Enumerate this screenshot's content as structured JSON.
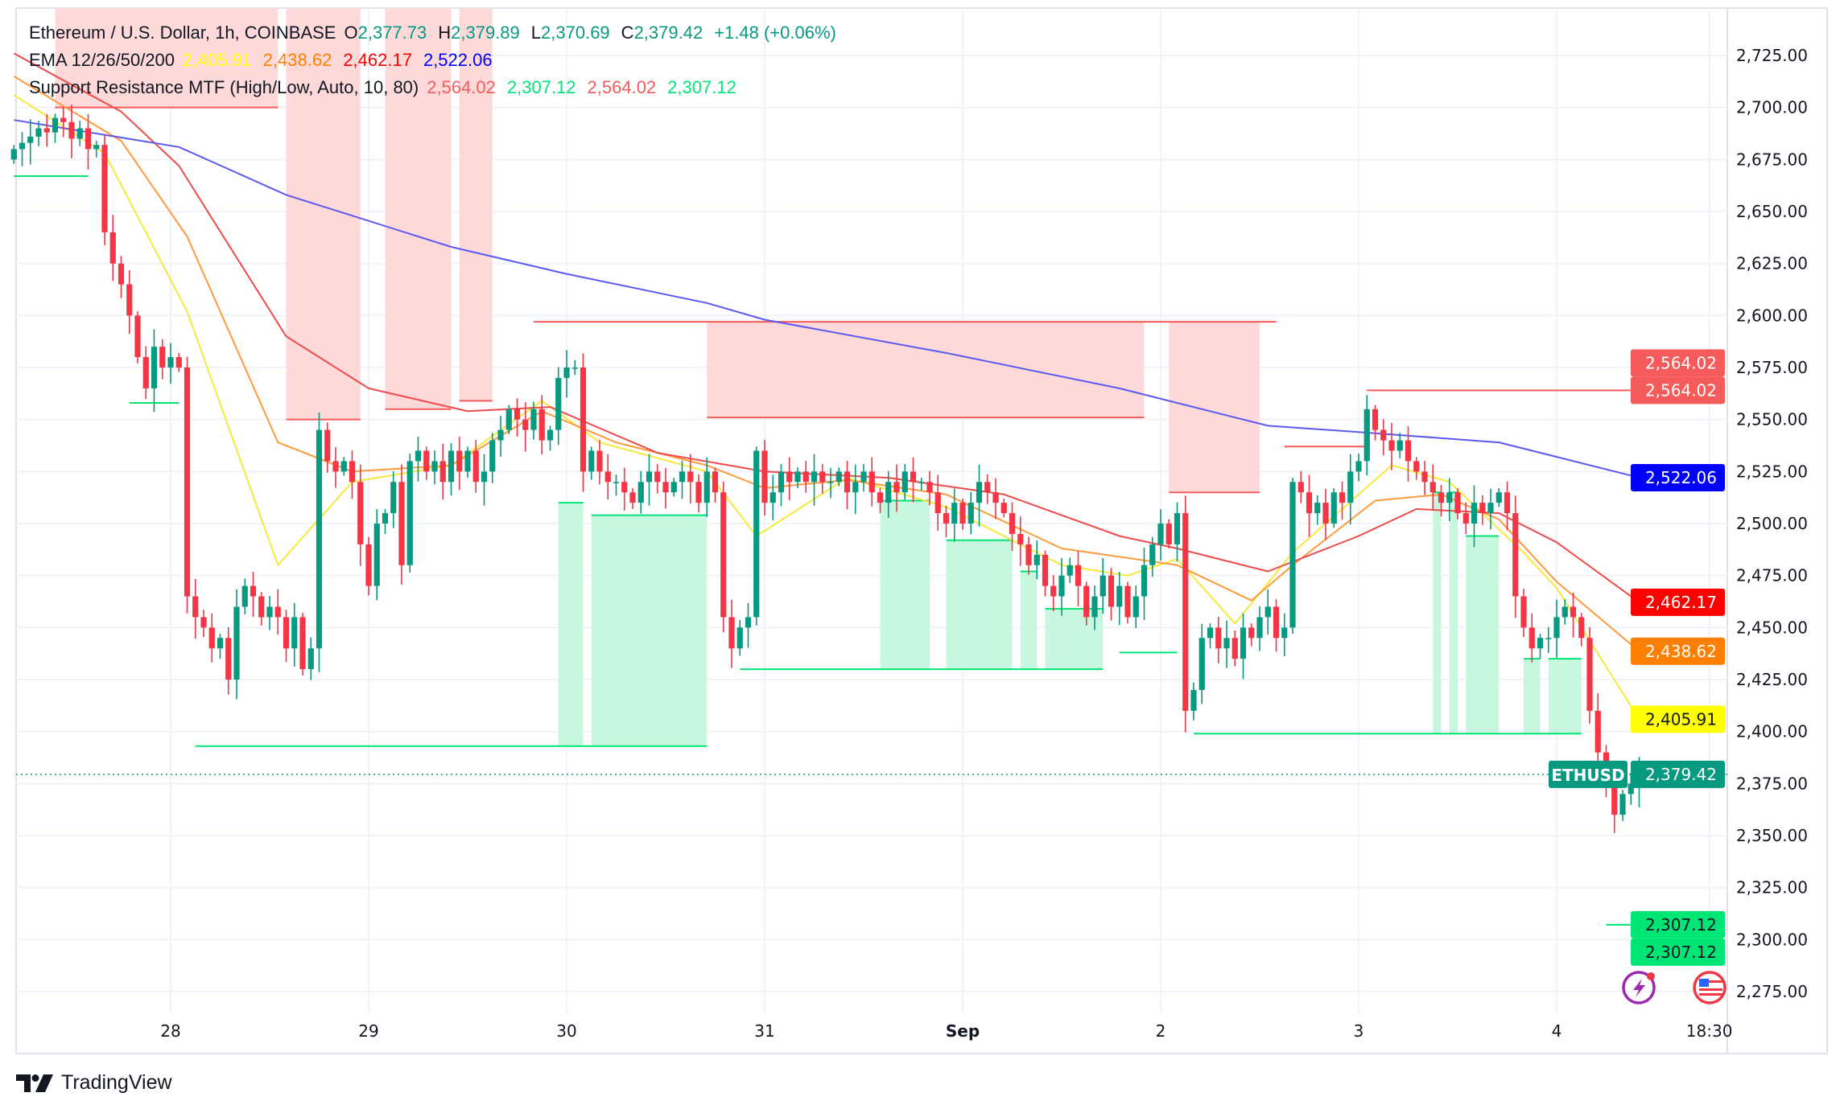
{
  "header": {
    "symbol_line": "Ethereum / U.S. Dollar, 1h, COINBASE",
    "ohlc": {
      "o_label": "O",
      "o": "2,377.73",
      "h_label": "H",
      "h": "2,379.89",
      "l_label": "L",
      "l": "2,370.69",
      "c_label": "C",
      "c": "2,379.42",
      "change": "+1.48 (+0.06%)"
    },
    "ema": {
      "label": "EMA 12/26/50/200",
      "v12": "2,405.91",
      "v26": "2,438.62",
      "v50": "2,462.17",
      "v200": "2,522.06"
    },
    "sr": {
      "label": "Support Resistance MTF (High/Low, Auto, 10, 80)",
      "r1": "2,564.02",
      "s1": "2,307.12",
      "r2": "2,564.02",
      "s2": "2,307.12"
    }
  },
  "colors": {
    "up": "#089981",
    "down": "#f23645",
    "ema12": "#f7e93a",
    "ema26": "#ff9a3c",
    "ema50": "#f04a4a",
    "ema200": "#5a5af0",
    "resistance": "#f55b5b",
    "support": "#00e676",
    "resistance_zone": "#fdd9da",
    "support_zone": "#c8f7e0"
  },
  "footer": {
    "brand": "TradingView"
  },
  "chart_data": {
    "type": "candlestick",
    "symbol": "ETHUSD",
    "interval": "1h",
    "ylim": [
      2262,
      2747
    ],
    "y_ticks": [
      "2,275.00",
      "2,300.00",
      "2,325.00",
      "2,350.00",
      "2,375.00",
      "2,400.00",
      "2,425.00",
      "2,450.00",
      "2,475.00",
      "2,500.00",
      "2,525.00",
      "2,550.00",
      "2,575.00",
      "2,600.00",
      "2,625.00",
      "2,650.00",
      "2,675.00",
      "2,700.00",
      "2,725.00"
    ],
    "x_ticks": [
      {
        "label": "28",
        "t": "08-28 00:00"
      },
      {
        "label": "29",
        "t": "08-29 00:00"
      },
      {
        "label": "30",
        "t": "08-30 00:00"
      },
      {
        "label": "31",
        "t": "08-31 00:00"
      },
      {
        "label": "Sep",
        "t": "09-01 00:00"
      },
      {
        "label": "2",
        "t": "09-02 00:00"
      },
      {
        "label": "3",
        "t": "09-03 00:00"
      },
      {
        "label": "4",
        "t": "09-04 00:00"
      },
      {
        "label": "18:30",
        "t": "09-04 18:30"
      }
    ],
    "grid": true,
    "candles": {
      "start": "08-27 05:00",
      "first_open": 2675,
      "closes": [
        2680,
        2683,
        2686,
        2690,
        2688,
        2695,
        2693,
        2685,
        2690,
        2680,
        2682,
        2640,
        2625,
        2615,
        2600,
        2580,
        2565,
        2585,
        2575,
        2580,
        2575,
        2465,
        2455,
        2450,
        2440,
        2445,
        2425,
        2460,
        2470,
        2465,
        2455,
        2460,
        2455,
        2440,
        2455,
        2430,
        2440,
        2545,
        2530,
        2525,
        2530,
        2520,
        2490,
        2470,
        2500,
        2505,
        2520,
        2480,
        2530,
        2535,
        2525,
        2530,
        2520,
        2535,
        2525,
        2535,
        2520,
        2525,
        2540,
        2545,
        2555,
        2550,
        2545,
        2555,
        2540,
        2545,
        2570,
        2575,
        2575,
        2525,
        2535,
        2525,
        2520,
        2520,
        2515,
        2510,
        2520,
        2525,
        2520,
        2515,
        2520,
        2525,
        2520,
        2510,
        2525,
        2515,
        2455,
        2440,
        2450,
        2455,
        2535,
        2510,
        2515,
        2525,
        2520,
        2525,
        2520,
        2525,
        2520,
        2520,
        2525,
        2515,
        2520,
        2525,
        2515,
        2510,
        2520,
        2515,
        2525,
        2520,
        2520,
        2515,
        2505,
        2500,
        2510,
        2500,
        2510,
        2520,
        2515,
        2510,
        2505,
        2495,
        2490,
        2480,
        2485,
        2470,
        2465,
        2475,
        2480,
        2470,
        2455,
        2465,
        2475,
        2460,
        2470,
        2455,
        2465,
        2480,
        2490,
        2500,
        2490,
        2505,
        2410,
        2420,
        2445,
        2450,
        2440,
        2445,
        2435,
        2450,
        2445,
        2455,
        2460,
        2445,
        2450,
        2520,
        2515,
        2505,
        2510,
        2500,
        2515,
        2510,
        2525,
        2530,
        2555,
        2545,
        2540,
        2535,
        2540,
        2530,
        2525,
        2520,
        2515,
        2510,
        2515,
        2505,
        2500,
        2510,
        2505,
        2510,
        2515,
        2505,
        2465,
        2450,
        2440,
        2445,
        2445,
        2455,
        2460,
        2455,
        2445,
        2410,
        2390,
        2375,
        2360,
        2370,
        2375,
        2379.42
      ]
    },
    "last_price": {
      "label": "ETHUSD",
      "value": 2379.42,
      "text": "2,379.42"
    },
    "series": [
      {
        "name": "EMA 12",
        "color_key": "ema12",
        "tag": "2,405.91",
        "last": 2405.91,
        "points": [
          [
            "08-27 05:00",
            2706
          ],
          [
            "08-27 16:00",
            2678
          ],
          [
            "08-28 02:00",
            2602
          ],
          [
            "08-28 13:00",
            2480
          ],
          [
            "08-28 22:00",
            2520
          ],
          [
            "08-29 10:00",
            2528
          ],
          [
            "08-29 21:00",
            2559
          ],
          [
            "08-30 04:00",
            2539
          ],
          [
            "08-30 17:00",
            2525
          ],
          [
            "08-30 23:00",
            2494
          ],
          [
            "08-31 10:00",
            2522
          ],
          [
            "08-31 22:00",
            2508
          ],
          [
            "09-01 12:00",
            2480
          ],
          [
            "09-01 20:00",
            2475
          ],
          [
            "09-02 02:00",
            2483
          ],
          [
            "09-02 09:00",
            2452
          ],
          [
            "09-02 16:00",
            2486
          ],
          [
            "09-03 04:00",
            2528
          ],
          [
            "09-03 11:00",
            2520
          ],
          [
            "09-03 20:00",
            2486
          ],
          [
            "09-04 00:00",
            2469
          ],
          [
            "09-04 10:00",
            2405.91
          ]
        ]
      },
      {
        "name": "EMA 26",
        "color_key": "ema26",
        "tag": "2,438.62",
        "last": 2438.62,
        "points": [
          [
            "08-27 05:00",
            2715
          ],
          [
            "08-27 18:00",
            2684
          ],
          [
            "08-28 02:00",
            2638
          ],
          [
            "08-28 13:00",
            2539
          ],
          [
            "08-28 22:00",
            2525
          ],
          [
            "08-29 10:00",
            2528
          ],
          [
            "08-29 21:00",
            2554
          ],
          [
            "08-30 06:00",
            2539
          ],
          [
            "08-30 17:00",
            2528
          ],
          [
            "08-31 00:00",
            2517
          ],
          [
            "08-31 10:00",
            2521
          ],
          [
            "08-31 22:00",
            2514
          ],
          [
            "09-01 12:00",
            2488
          ],
          [
            "09-02 02:00",
            2480
          ],
          [
            "09-02 11:00",
            2463
          ],
          [
            "09-02 16:00",
            2480
          ],
          [
            "09-03 02:00",
            2511
          ],
          [
            "09-03 10:00",
            2514
          ],
          [
            "09-03 17:00",
            2502
          ],
          [
            "09-04 00:00",
            2472
          ],
          [
            "09-04 10:00",
            2438.62
          ]
        ]
      },
      {
        "name": "EMA 50",
        "color_key": "ema50",
        "tag": "2,462.17",
        "last": 2462.17,
        "points": [
          [
            "08-27 05:00",
            2726
          ],
          [
            "08-27 18:00",
            2698
          ],
          [
            "08-28 01:00",
            2672
          ],
          [
            "08-28 14:00",
            2590
          ],
          [
            "08-29 00:00",
            2565
          ],
          [
            "08-29 12:00",
            2554
          ],
          [
            "08-29 22:00",
            2556
          ],
          [
            "08-30 11:00",
            2534
          ],
          [
            "08-31 00:00",
            2525
          ],
          [
            "08-31 15:00",
            2522
          ],
          [
            "09-01 05:00",
            2514
          ],
          [
            "09-01 19:00",
            2494
          ],
          [
            "09-02 02:00",
            2488
          ],
          [
            "09-02 13:00",
            2477
          ],
          [
            "09-03 00:00",
            2494
          ],
          [
            "09-03 07:00",
            2507
          ],
          [
            "09-03 17:00",
            2505
          ],
          [
            "09-04 00:00",
            2491
          ],
          [
            "09-04 10:00",
            2462.17
          ]
        ]
      },
      {
        "name": "EMA 200",
        "color_key": "ema200",
        "tag": "2,522.06",
        "last": 2522.06,
        "points": [
          [
            "08-27 05:00",
            2694
          ],
          [
            "08-28 01:00",
            2681
          ],
          [
            "08-28 14:00",
            2658
          ],
          [
            "08-29 10:00",
            2633
          ],
          [
            "08-30 00:00",
            2620
          ],
          [
            "08-30 17:00",
            2606
          ],
          [
            "08-31 00:00",
            2598
          ],
          [
            "08-31 22:00",
            2582
          ],
          [
            "09-01 19:00",
            2565
          ],
          [
            "09-02 02:00",
            2558
          ],
          [
            "09-02 13:00",
            2547
          ],
          [
            "09-03 00:00",
            2544
          ],
          [
            "09-03 17:00",
            2539
          ],
          [
            "09-04 10:00",
            2522.06
          ]
        ]
      }
    ],
    "resistance": {
      "tags": [
        "2,564.02",
        "2,564.02"
      ],
      "level": 2564.02,
      "levels": [
        {
          "from": "08-27 10:00",
          "to": "08-28 13:00",
          "price": 2700,
          "zone_top": null
        },
        {
          "from": "08-28 14:00",
          "to": "08-28 23:00",
          "price": 2550,
          "zone_top": null
        },
        {
          "from": "08-29 02:00",
          "to": "08-29 10:00",
          "price": 2555,
          "zone_top": null
        },
        {
          "from": "08-29 11:00",
          "to": "08-29 15:00",
          "price": 2559,
          "zone_top": null
        },
        {
          "from": "08-29 20:00",
          "to": "09-02 14:00",
          "price": 2597
        },
        {
          "from": "08-30 17:00",
          "to": "09-01 22:00",
          "price": 2551,
          "zone_top": 2597
        },
        {
          "from": "09-02 01:00",
          "to": "09-02 12:00",
          "price": 2515,
          "zone_top": 2597
        },
        {
          "from": "09-02 15:00",
          "to": "09-03 01:00",
          "price": 2537
        },
        {
          "from": "09-03 01:00",
          "to": "09-04 10:00",
          "price": 2564.02
        }
      ]
    },
    "support": {
      "tags": [
        "2,307.12",
        "2,307.12"
      ],
      "level": 2307.12,
      "levels": [
        {
          "from": "08-27 05:00",
          "to": "08-27 14:00",
          "price": 2667
        },
        {
          "from": "08-27 19:00",
          "to": "08-28 01:00",
          "price": 2558
        },
        {
          "from": "08-28 03:00",
          "to": "08-30 17:00",
          "price": 2393
        },
        {
          "from": "08-29 23:00",
          "to": "08-30 02:00",
          "price": 2510,
          "zone_bottom": 2393
        },
        {
          "from": "08-30 03:00",
          "to": "08-30 17:00",
          "price": 2504,
          "zone_bottom": 2393
        },
        {
          "from": "08-30 21:00",
          "to": "09-01 17:00",
          "price": 2430
        },
        {
          "from": "08-31 14:00",
          "to": "08-31 20:00",
          "price": 2511,
          "zone_bottom": 2430
        },
        {
          "from": "08-31 22:00",
          "to": "09-01 06:00",
          "price": 2492,
          "zone_bottom": 2430
        },
        {
          "from": "09-01 07:00",
          "to": "09-01 09:00",
          "price": 2477,
          "zone_bottom": 2430
        },
        {
          "from": "09-01 10:00",
          "to": "09-01 17:00",
          "price": 2459,
          "zone_bottom": 2430
        },
        {
          "from": "09-01 19:00",
          "to": "09-02 02:00",
          "price": 2438
        },
        {
          "from": "09-02 04:00",
          "to": "09-04 03:00",
          "price": 2399
        },
        {
          "from": "09-03 09:00",
          "to": "09-03 10:00",
          "price": 2515,
          "zone_bottom": 2399
        },
        {
          "from": "09-03 11:00",
          "to": "09-03 12:00",
          "price": 2515,
          "zone_bottom": 2399
        },
        {
          "from": "09-03 13:00",
          "to": "09-03 17:00",
          "price": 2494,
          "zone_bottom": 2399
        },
        {
          "from": "09-03 20:00",
          "to": "09-03 22:00",
          "price": 2435,
          "zone_bottom": 2399
        },
        {
          "from": "09-03 23:00",
          "to": "09-04 03:00",
          "price": 2435,
          "zone_bottom": 2399
        },
        {
          "from": "09-04 06:00",
          "to": "09-04 10:00",
          "price": 2307.12
        }
      ]
    }
  }
}
